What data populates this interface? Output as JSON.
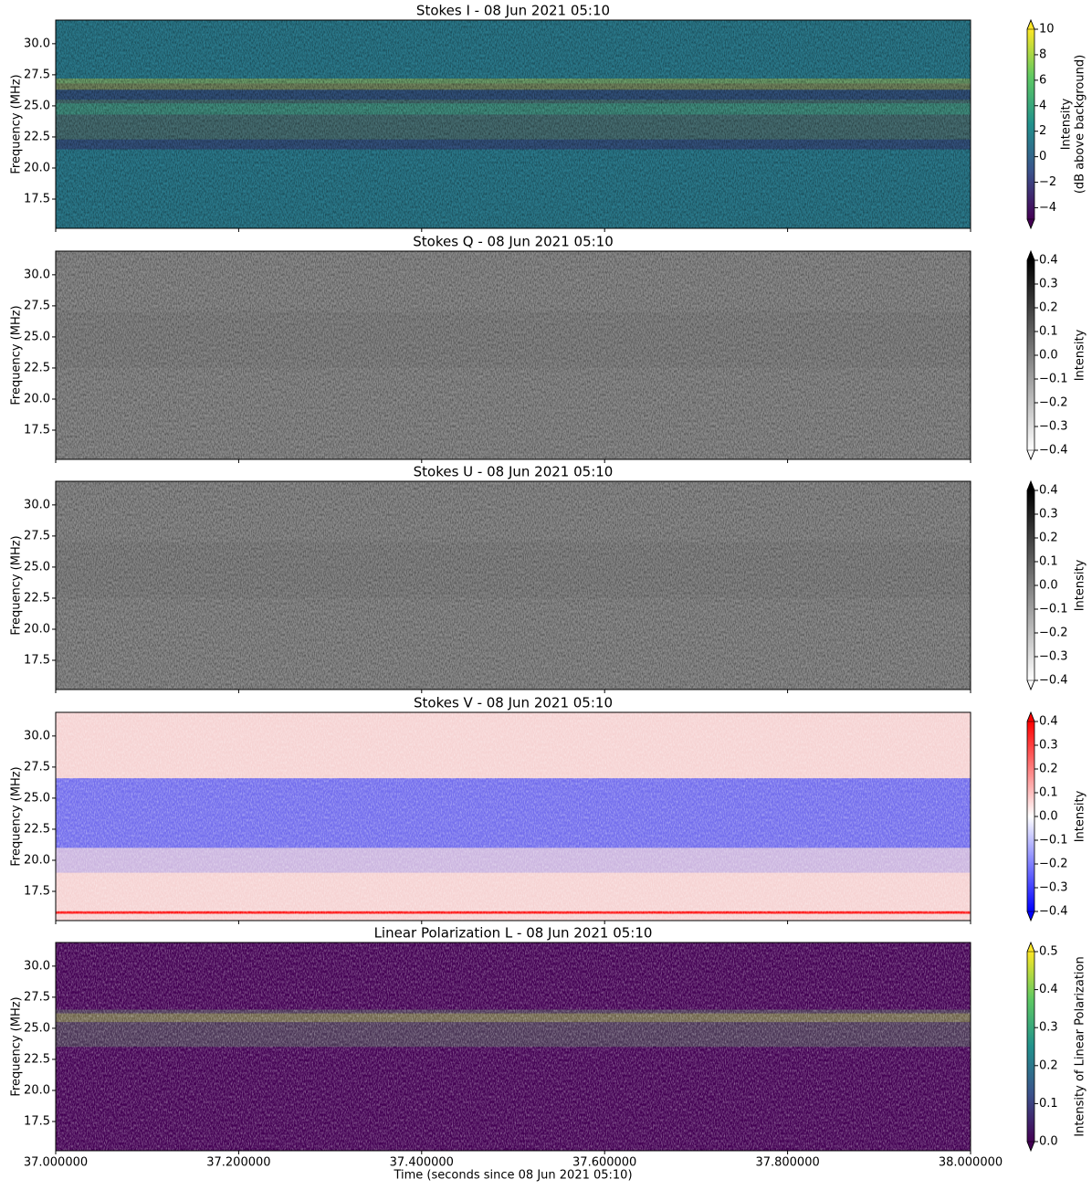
{
  "chart_data": [
    {
      "type": "heatmap",
      "title": "Stokes I - 08 Jun 2021 05:10",
      "ylabel": "Frequency (MHz)",
      "xlim": [
        37.0,
        38.0
      ],
      "xticks": [
        {
          "value": 37.0,
          "label": "37.000000"
        },
        {
          "value": 37.2,
          "label": "37.200000"
        },
        {
          "value": 37.4,
          "label": "37.400000"
        },
        {
          "value": 37.6,
          "label": "37.600000"
        },
        {
          "value": 37.8,
          "label": "37.800000"
        },
        {
          "value": 38.0,
          "label": "38.000000"
        }
      ],
      "ylim": [
        15.15,
        31.9
      ],
      "yticks": [
        {
          "value": 17.5,
          "label": "17.5"
        },
        {
          "value": 20,
          "label": "20.0"
        },
        {
          "value": 22.5,
          "label": "22.5"
        },
        {
          "value": 25,
          "label": "25.0"
        },
        {
          "value": 27.5,
          "label": "27.5"
        },
        {
          "value": 30,
          "label": "30.0"
        }
      ],
      "colorbar": {
        "label": [
          "Intensity",
          "(dB above background)"
        ],
        "lim": [
          -4.9,
          10
        ],
        "ticks": [
          {
            "value": -4,
            "label": "−4"
          },
          {
            "value": -2,
            "label": "−2"
          },
          0,
          2,
          4,
          6,
          8,
          10
        ],
        "colormap": [
          "#440154",
          "#3b528b",
          "#21918c",
          "#5ec962",
          "#fde725"
        ],
        "extend": "both"
      }
    },
    {
      "type": "heatmap",
      "title": "Stokes Q - 08 Jun 2021 05:10",
      "ylabel": "Frequency (MHz)",
      "xlim": [
        37.0,
        38.0
      ],
      "xticks": [
        37.0,
        37.2,
        37.4,
        37.6,
        37.8,
        38.0
      ],
      "ylim": [
        15.15,
        31.9
      ],
      "yticks": [
        {
          "value": 17.5,
          "label": "17.5"
        },
        {
          "value": 20,
          "label": "20.0"
        },
        {
          "value": 22.5,
          "label": "22.5"
        },
        {
          "value": 25,
          "label": "25.0"
        },
        {
          "value": 27.5,
          "label": "27.5"
        },
        {
          "value": 30,
          "label": "30.0"
        }
      ],
      "colorbar": {
        "label": [
          "Intensity"
        ],
        "lim": [
          -0.4,
          0.4
        ],
        "ticks": [
          {
            "value": -0.4,
            "label": "−0.4"
          },
          {
            "value": -0.3,
            "label": "−0.3"
          },
          {
            "value": -0.2,
            "label": "−0.2"
          },
          {
            "value": -0.1,
            "label": "−0.1"
          },
          {
            "value": 0,
            "label": "0.0"
          },
          0.1,
          0.2,
          0.3,
          0.4
        ],
        "colormap": [
          "#ffffff",
          "#000000"
        ],
        "extend": "both"
      }
    },
    {
      "type": "heatmap",
      "title": "Stokes U - 08 Jun 2021 05:10",
      "ylabel": "Frequency (MHz)",
      "xlim": [
        37.0,
        38.0
      ],
      "xticks": [
        37.0,
        37.2,
        37.4,
        37.6,
        37.8,
        38.0
      ],
      "ylim": [
        15.15,
        31.9
      ],
      "yticks": [
        {
          "value": 17.5,
          "label": "17.5"
        },
        {
          "value": 20,
          "label": "20.0"
        },
        {
          "value": 22.5,
          "label": "22.5"
        },
        {
          "value": 25,
          "label": "25.0"
        },
        {
          "value": 27.5,
          "label": "27.5"
        },
        {
          "value": 30,
          "label": "30.0"
        }
      ],
      "colorbar": {
        "label": [
          "Intensity"
        ],
        "lim": [
          -0.4,
          0.4
        ],
        "ticks": [
          {
            "value": -0.4,
            "label": "−0.4"
          },
          {
            "value": -0.3,
            "label": "−0.3"
          },
          {
            "value": -0.2,
            "label": "−0.2"
          },
          {
            "value": -0.1,
            "label": "−0.1"
          },
          {
            "value": 0,
            "label": "0.0"
          },
          0.1,
          0.2,
          0.3,
          0.4
        ],
        "colormap": [
          "#ffffff",
          "#000000"
        ],
        "extend": "both"
      }
    },
    {
      "type": "heatmap",
      "title": "Stokes V - 08 Jun 2021 05:10",
      "ylabel": "Frequency (MHz)",
      "xlim": [
        37.0,
        38.0
      ],
      "xticks": [
        37.0,
        37.2,
        37.4,
        37.6,
        37.8,
        38.0
      ],
      "ylim": [
        15.15,
        31.9
      ],
      "yticks": [
        {
          "value": 17.5,
          "label": "17.5"
        },
        {
          "value": 20,
          "label": "20.0"
        },
        {
          "value": 22.5,
          "label": "22.5"
        },
        {
          "value": 25,
          "label": "25.0"
        },
        {
          "value": 27.5,
          "label": "27.5"
        },
        {
          "value": 30,
          "label": "30.0"
        }
      ],
      "colorbar": {
        "label": [
          "Intensity"
        ],
        "lim": [
          -0.4,
          0.4
        ],
        "ticks": [
          {
            "value": -0.4,
            "label": "−0.4"
          },
          {
            "value": -0.3,
            "label": "−0.3"
          },
          {
            "value": -0.2,
            "label": "−0.2"
          },
          {
            "value": -0.1,
            "label": "−0.1"
          },
          {
            "value": 0,
            "label": "0.0"
          },
          0.1,
          0.2,
          0.3,
          0.4
        ],
        "colormap": [
          "#0000ff",
          "#ffffff",
          "#ff0000"
        ],
        "extend": "both"
      }
    },
    {
      "type": "heatmap",
      "title": "Linear Polarization L - 08 Jun 2021 05:10",
      "ylabel": "Frequency (MHz)",
      "xlabel": "Time (seconds since 08 Jun 2021 05:10)",
      "xlim": [
        37.0,
        38.0
      ],
      "xticks": [
        {
          "value": 37.0,
          "label": "37.000000"
        },
        {
          "value": 37.2,
          "label": "37.200000"
        },
        {
          "value": 37.4,
          "label": "37.400000"
        },
        {
          "value": 37.6,
          "label": "37.600000"
        },
        {
          "value": 37.8,
          "label": "37.800000"
        },
        {
          "value": 38.0,
          "label": "38.000000"
        }
      ],
      "ylim": [
        15.15,
        31.9
      ],
      "yticks": [
        {
          "value": 17.5,
          "label": "17.5"
        },
        {
          "value": 20,
          "label": "20.0"
        },
        {
          "value": 22.5,
          "label": "22.5"
        },
        {
          "value": 25,
          "label": "25.0"
        },
        {
          "value": 27.5,
          "label": "27.5"
        },
        {
          "value": 30,
          "label": "30.0"
        }
      ],
      "colorbar": {
        "label": [
          "Intensity of Linear Polarization"
        ],
        "lim": [
          0,
          0.5
        ],
        "ticks": [
          {
            "value": 0,
            "label": "0.0"
          },
          0.1,
          0.2,
          0.3,
          0.4,
          0.5
        ],
        "colormap": [
          "#440154",
          "#3b528b",
          "#21918c",
          "#5ec962",
          "#fde725"
        ],
        "extend": "both"
      }
    }
  ]
}
